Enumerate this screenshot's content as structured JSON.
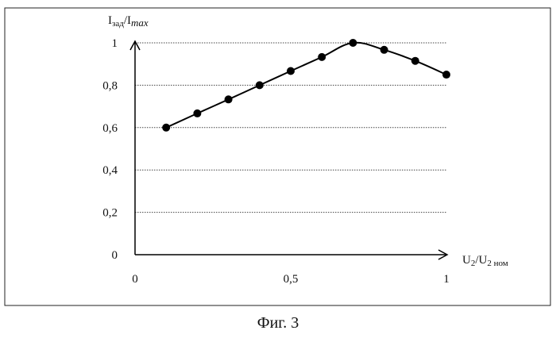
{
  "caption": "Фиг. 3",
  "chart_data": {
    "type": "line",
    "ylabel": {
      "main": "I",
      "sub": "зад",
      "sep": "/I",
      "tail": "max"
    },
    "xlabel": {
      "main": "U",
      "sub": "2",
      "sep": "/U",
      "tail": "2 ном"
    },
    "xlim": [
      0,
      1
    ],
    "ylim": [
      0,
      1
    ],
    "x_ticks": [
      "0",
      "0,5",
      "1"
    ],
    "y_ticks": [
      "0",
      "0,2",
      "0,4",
      "0,6",
      "0,8",
      "1"
    ],
    "grid": "horizontal",
    "legend": "none",
    "series": [
      {
        "x": [
          0.1,
          0.2,
          0.3,
          0.4,
          0.5,
          0.6,
          0.7,
          0.8,
          0.9,
          1.0
        ],
        "y": [
          0.6,
          0.667,
          0.733,
          0.8,
          0.867,
          0.933,
          1.0,
          0.967,
          0.915,
          0.85
        ]
      }
    ]
  }
}
